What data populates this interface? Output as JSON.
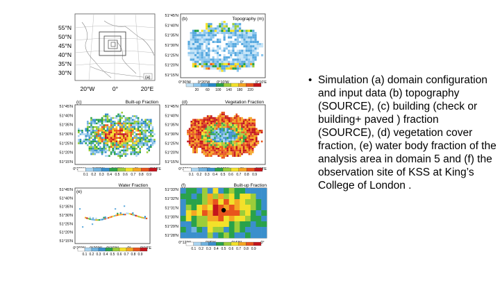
{
  "slide": {
    "bullet_text": "Simulation (a) domain configuration and input data (b) topography (SOURCE), (c) building (check or building+ paved ) fraction (SOURCE), (d) vegetation cover fraction, (e) water body fraction of the analysis area in domain 5 and (f) the observation site of KSS at King’s College of London ."
  },
  "panel_a": {
    "label": "(a)",
    "lat_labels": [
      "55°N",
      "50°N",
      "45°N",
      "40°N",
      "35°N",
      "30°N"
    ],
    "lon_labels": [
      "20°W",
      "0°",
      "20°E"
    ]
  },
  "panel_b": {
    "label": "(b)",
    "title": "Topography (m)",
    "lat_labels": [
      "51°45'N",
      "51°40'N",
      "51°35'N",
      "51°30'N",
      "51°25'N",
      "51°20'N",
      "51°15'N"
    ],
    "lon_labels": [
      "0°30'W",
      "0°20'W",
      "0°10'W",
      "0°",
      "0°10'E"
    ],
    "colorbar_ticks": [
      "20",
      "60",
      "100",
      "140",
      "180",
      "220"
    ]
  },
  "panel_c": {
    "label": "(c)",
    "title": "Built-up Fraction",
    "lat_labels": [
      "51°45'N",
      "51°40'N",
      "51°35'N",
      "51°30'N",
      "51°25'N",
      "51°20'N",
      "51°15'N"
    ],
    "lon_labels": [
      "0°30'W",
      "0°20'W",
      "0°10'W",
      "0°",
      "0°10'E"
    ],
    "colorbar_ticks": [
      "0.1",
      "0.2",
      "0.3",
      "0.4",
      "0.5",
      "0.6",
      "0.7",
      "0.8",
      "0.9"
    ]
  },
  "panel_d": {
    "label": "(d)",
    "title": "Vegetation Fraction",
    "lat_labels": [
      "51°45'N",
      "51°40'N",
      "51°35'N",
      "51°30'N",
      "51°25'N",
      "51°20'N",
      "51°15'N"
    ],
    "lon_labels": [
      "0°30'W",
      "0°20'W",
      "0°10'W",
      "0°",
      "0°10'E"
    ],
    "colorbar_ticks": [
      "0.1",
      "0.2",
      "0.3",
      "0.4",
      "0.5",
      "0.6",
      "0.7",
      "0.8",
      "0.9"
    ]
  },
  "panel_e": {
    "label": "(e)",
    "title": "Water Fraction",
    "lat_labels": [
      "51°45'N",
      "51°40'N",
      "51°35'N",
      "51°30'N",
      "51°25'N",
      "51°20'N",
      "51°15'N"
    ],
    "lon_labels": [
      "0°30'W",
      "0°20'W",
      "0°10'W",
      "0°",
      "0°10'E"
    ],
    "colorbar_ticks": [
      "0.1",
      "0.2",
      "0.3",
      "0.4",
      "0.5",
      "0.6",
      "0.7",
      "0.8",
      "0.9"
    ]
  },
  "panel_f": {
    "label": "(f)",
    "title": "Built-up Fraction",
    "lat_labels": [
      "51°33'N",
      "51°32'N",
      "51°31'N",
      "51°30'N",
      "51°29'N",
      "51°28'N"
    ],
    "lon_labels": [
      "0°12'W",
      "0°8'W",
      "0°4'W",
      "0°"
    ],
    "colorbar_ticks": [
      "0.1",
      "0.2",
      "0.3",
      "0.4",
      "0.5",
      "0.6",
      "0.7",
      "0.8",
      "0.9"
    ]
  },
  "colors": {
    "fraction_scale": [
      "#ffffff",
      "#a9d4f0",
      "#6fb3e0",
      "#3a8fcc",
      "#2aa24a",
      "#9ccd3a",
      "#f3e12a",
      "#f5a623",
      "#e8541d",
      "#c4151c",
      "#7a0b10"
    ],
    "topo_scale": [
      "#ffffff",
      "#c6e4f7",
      "#8fc8ee",
      "#58a9df",
      "#2a8ac9",
      "#2aa24a",
      "#9ccd3a",
      "#f3e12a",
      "#f5a623",
      "#e8541d",
      "#c4151c"
    ]
  }
}
